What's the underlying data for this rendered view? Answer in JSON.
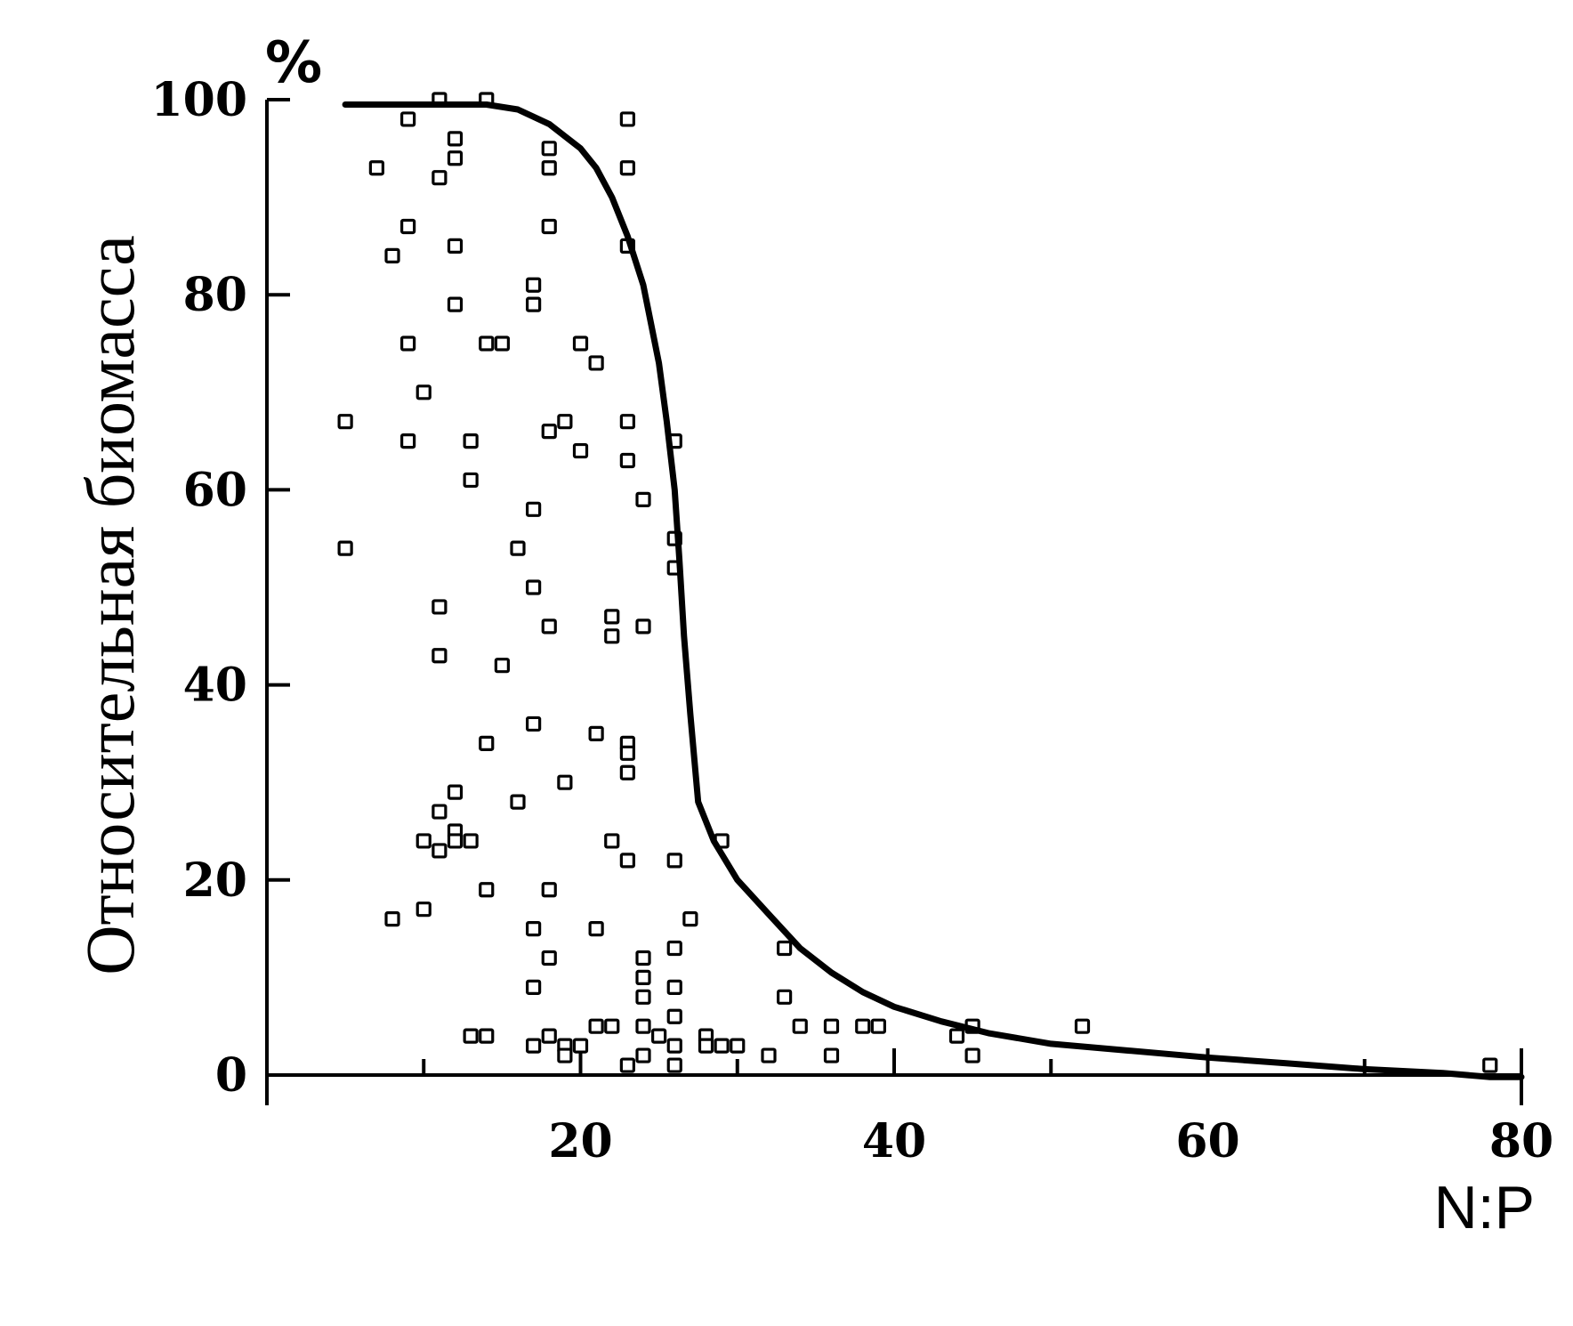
{
  "chart_data": {
    "type": "scatter",
    "title": "",
    "xlabel": "N:P",
    "ylabel": "Относительная биомасса",
    "y_unit": "%",
    "xlim": [
      0,
      80
    ],
    "ylim": [
      0,
      100
    ],
    "x_ticks": [
      20,
      40,
      60,
      80
    ],
    "y_ticks": [
      0,
      20,
      40,
      60,
      80,
      100
    ],
    "grid": false,
    "series": [
      {
        "type": "scatter",
        "marker": "open-square",
        "points": [
          [
            5,
            67
          ],
          [
            5,
            54
          ],
          [
            7,
            93
          ],
          [
            8,
            84
          ],
          [
            8,
            16
          ],
          [
            9,
            98
          ],
          [
            9,
            87
          ],
          [
            9,
            75
          ],
          [
            9,
            65
          ],
          [
            10,
            70
          ],
          [
            10,
            24
          ],
          [
            10,
            17
          ],
          [
            11,
            100
          ],
          [
            11,
            92
          ],
          [
            11,
            48
          ],
          [
            11,
            43
          ],
          [
            11,
            27
          ],
          [
            11,
            23
          ],
          [
            12,
            96
          ],
          [
            12,
            94
          ],
          [
            12,
            85
          ],
          [
            12,
            79
          ],
          [
            12,
            29
          ],
          [
            12,
            25
          ],
          [
            12,
            24
          ],
          [
            13,
            65
          ],
          [
            13,
            61
          ],
          [
            13,
            24
          ],
          [
            13,
            4
          ],
          [
            14,
            100
          ],
          [
            14,
            75
          ],
          [
            14,
            34
          ],
          [
            14,
            19
          ],
          [
            14,
            4
          ],
          [
            15,
            75
          ],
          [
            15,
            42
          ],
          [
            16,
            54
          ],
          [
            16,
            28
          ],
          [
            17,
            81
          ],
          [
            17,
            79
          ],
          [
            17,
            58
          ],
          [
            17,
            50
          ],
          [
            17,
            36
          ],
          [
            17,
            15
          ],
          [
            17,
            9
          ],
          [
            17,
            3
          ],
          [
            18,
            95
          ],
          [
            18,
            93
          ],
          [
            18,
            87
          ],
          [
            18,
            66
          ],
          [
            18,
            46
          ],
          [
            18,
            19
          ],
          [
            18,
            12
          ],
          [
            18,
            4
          ],
          [
            19,
            67
          ],
          [
            19,
            30
          ],
          [
            19,
            3
          ],
          [
            19,
            2
          ],
          [
            20,
            75
          ],
          [
            20,
            64
          ],
          [
            20,
            3
          ],
          [
            21,
            73
          ],
          [
            21,
            35
          ],
          [
            21,
            15
          ],
          [
            21,
            5
          ],
          [
            22,
            47
          ],
          [
            22,
            45
          ],
          [
            22,
            24
          ],
          [
            22,
            5
          ],
          [
            23,
            98
          ],
          [
            23,
            93
          ],
          [
            23,
            85
          ],
          [
            23,
            67
          ],
          [
            23,
            63
          ],
          [
            23,
            34
          ],
          [
            23,
            33
          ],
          [
            23,
            31
          ],
          [
            23,
            22
          ],
          [
            23,
            1
          ],
          [
            24,
            59
          ],
          [
            24,
            46
          ],
          [
            24,
            12
          ],
          [
            24,
            10
          ],
          [
            24,
            8
          ],
          [
            24,
            5
          ],
          [
            24,
            2
          ],
          [
            25,
            4
          ],
          [
            26,
            65
          ],
          [
            26,
            55
          ],
          [
            26,
            52
          ],
          [
            26,
            22
          ],
          [
            26,
            13
          ],
          [
            26,
            9
          ],
          [
            26,
            6
          ],
          [
            26,
            3
          ],
          [
            26,
            1
          ],
          [
            27,
            16
          ],
          [
            28,
            4
          ],
          [
            28,
            3
          ],
          [
            29,
            24
          ],
          [
            29,
            3
          ],
          [
            30,
            3
          ],
          [
            32,
            2
          ],
          [
            33,
            13
          ],
          [
            33,
            8
          ],
          [
            34,
            5
          ],
          [
            36,
            5
          ],
          [
            36,
            2
          ],
          [
            38,
            5
          ],
          [
            39,
            5
          ],
          [
            44,
            4
          ],
          [
            45,
            5
          ],
          [
            45,
            2
          ],
          [
            52,
            5
          ],
          [
            78,
            1
          ]
        ]
      },
      {
        "type": "line",
        "points": [
          [
            5,
            99.5
          ],
          [
            10,
            99.5
          ],
          [
            14,
            99.5
          ],
          [
            16,
            99
          ],
          [
            18,
            97.5
          ],
          [
            20,
            95
          ],
          [
            21,
            93
          ],
          [
            22,
            90
          ],
          [
            23,
            86
          ],
          [
            24,
            81
          ],
          [
            25,
            73
          ],
          [
            25.5,
            67
          ],
          [
            26,
            60
          ],
          [
            26.3,
            53
          ],
          [
            26.6,
            45
          ],
          [
            27,
            37
          ],
          [
            27.5,
            28
          ],
          [
            28.5,
            24
          ],
          [
            30,
            20
          ],
          [
            32,
            16.5
          ],
          [
            34,
            13
          ],
          [
            36,
            10.5
          ],
          [
            38,
            8.5
          ],
          [
            40,
            7
          ],
          [
            43,
            5.5
          ],
          [
            46,
            4.3
          ],
          [
            50,
            3.2
          ],
          [
            55,
            2.5
          ],
          [
            60,
            1.8
          ],
          [
            65,
            1.2
          ],
          [
            70,
            0.6
          ],
          [
            75,
            0.2
          ],
          [
            78,
            -0.2
          ],
          [
            80,
            -0.2
          ]
        ]
      }
    ]
  }
}
